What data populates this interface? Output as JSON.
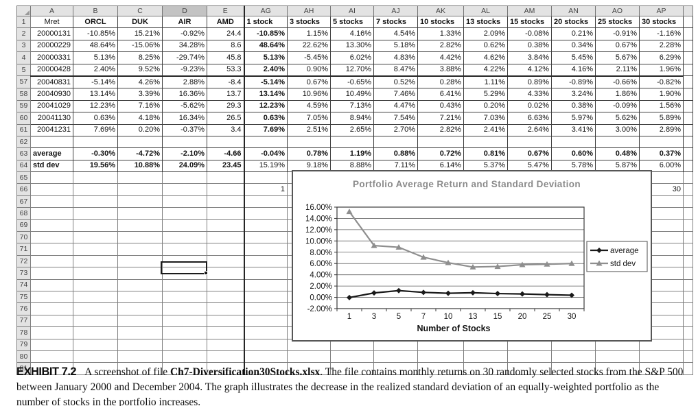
{
  "sheet": {
    "columns": [
      "A",
      "B",
      "C",
      "D",
      "E",
      "AG",
      "AH",
      "AI",
      "AJ",
      "AK",
      "AL",
      "AM",
      "AN",
      "AO",
      "AP"
    ],
    "selected_column": "D",
    "selected_row": "74",
    "selected_cell": "D74",
    "rows": [
      {
        "num": "1",
        "cells": [
          "Mret",
          "ORCL",
          "DUK",
          "AIR",
          "AMD",
          "1 stock",
          "3 stocks",
          "5 stocks",
          "7 stocks",
          "10 stocks",
          "13 stocks",
          "15 stocks",
          "20 stocks",
          "25 stocks",
          "30 stocks"
        ]
      },
      {
        "num": "2",
        "cells": [
          "20000131",
          "-10.85%",
          "15.21%",
          "-0.92%",
          "24.4",
          "-10.85%",
          "1.15%",
          "4.16%",
          "4.54%",
          "1.33%",
          "2.09%",
          "-0.08%",
          "0.21%",
          "-0.91%",
          "-1.16%"
        ]
      },
      {
        "num": "3",
        "cells": [
          "20000229",
          "48.64%",
          "-15.06%",
          "34.28%",
          "8.6",
          "48.64%",
          "22.62%",
          "13.30%",
          "5.18%",
          "2.82%",
          "0.62%",
          "0.38%",
          "0.34%",
          "0.67%",
          "2.28%"
        ]
      },
      {
        "num": "4",
        "cells": [
          "20000331",
          "5.13%",
          "8.25%",
          "-29.74%",
          "45.8",
          "5.13%",
          "-5.45%",
          "6.02%",
          "4.83%",
          "4.42%",
          "4.62%",
          "3.84%",
          "5.45%",
          "5.67%",
          "6.29%"
        ]
      },
      {
        "num": "5",
        "cells": [
          "20000428",
          "2.40%",
          "9.52%",
          "-9.23%",
          "53.3",
          "2.40%",
          "0.90%",
          "12.70%",
          "8.47%",
          "3.88%",
          "4.22%",
          "4.12%",
          "4.16%",
          "2.11%",
          "1.96%"
        ]
      },
      {
        "num": "57",
        "cells": [
          "20040831",
          "-5.14%",
          "4.26%",
          "2.88%",
          "-8.4",
          "-5.14%",
          "0.67%",
          "-0.65%",
          "0.52%",
          "0.28%",
          "1.11%",
          "0.89%",
          "-0.89%",
          "-0.66%",
          "-0.82%"
        ]
      },
      {
        "num": "58",
        "cells": [
          "20040930",
          "13.14%",
          "3.39%",
          "16.36%",
          "13.7",
          "13.14%",
          "10.96%",
          "10.49%",
          "7.46%",
          "6.41%",
          "5.29%",
          "4.33%",
          "3.24%",
          "1.86%",
          "1.90%"
        ]
      },
      {
        "num": "59",
        "cells": [
          "20041029",
          "12.23%",
          "7.16%",
          "-5.62%",
          "29.3",
          "12.23%",
          "4.59%",
          "7.13%",
          "4.47%",
          "0.43%",
          "0.20%",
          "0.02%",
          "0.38%",
          "-0.09%",
          "1.56%"
        ]
      },
      {
        "num": "60",
        "cells": [
          "20041130",
          "0.63%",
          "4.18%",
          "16.34%",
          "26.5",
          "0.63%",
          "7.05%",
          "8.94%",
          "7.54%",
          "7.21%",
          "7.03%",
          "6.63%",
          "5.97%",
          "5.62%",
          "5.89%"
        ]
      },
      {
        "num": "61",
        "cells": [
          "20041231",
          "7.69%",
          "0.20%",
          "-0.37%",
          "3.4",
          "7.69%",
          "2.51%",
          "2.65%",
          "2.70%",
          "2.82%",
          "2.41%",
          "2.64%",
          "3.41%",
          "3.00%",
          "2.89%"
        ]
      },
      {
        "num": "62"
      },
      {
        "num": "63",
        "cells": [
          "average",
          "-0.30%",
          "-4.72%",
          "-2.10%",
          "-4.66",
          "-0.04%",
          "0.78%",
          "1.19%",
          "0.88%",
          "0.72%",
          "0.81%",
          "0.67%",
          "0.60%",
          "0.48%",
          "0.37%"
        ]
      },
      {
        "num": "64",
        "cells": [
          "std dev",
          "19.56%",
          "10.88%",
          "24.09%",
          "23.45",
          "15.19%",
          "9.18%",
          "8.88%",
          "7.11%",
          "6.14%",
          "5.37%",
          "5.47%",
          "5.78%",
          "5.87%",
          "6.00%"
        ]
      },
      {
        "num": "65"
      },
      {
        "num": "66",
        "cells": [
          "",
          "",
          "",
          "",
          "",
          "1",
          "",
          "",
          "",
          "",
          "",
          "",
          "",
          "",
          "30"
        ]
      },
      {
        "num": "67"
      },
      {
        "num": "68"
      },
      {
        "num": "69"
      },
      {
        "num": "70"
      },
      {
        "num": "71"
      },
      {
        "num": "72"
      },
      {
        "num": "73"
      },
      {
        "num": "74"
      },
      {
        "num": "75"
      },
      {
        "num": "76"
      },
      {
        "num": "77"
      },
      {
        "num": "78"
      },
      {
        "num": "79"
      },
      {
        "num": "80"
      },
      {
        "num": "81"
      }
    ]
  },
  "chart_data": {
    "type": "line",
    "title": "Portfolio Average Return and Standard Deviation",
    "xlabel": "Number of Stocks",
    "ylabel": "",
    "categories": [
      "1",
      "3",
      "5",
      "7",
      "10",
      "13",
      "15",
      "20",
      "25",
      "30"
    ],
    "series": [
      {
        "name": "average",
        "marker": "diamond",
        "color": "#1a1a1a",
        "values": [
          -0.04,
          0.78,
          1.19,
          0.88,
          0.72,
          0.81,
          0.67,
          0.6,
          0.48,
          0.37
        ]
      },
      {
        "name": "std dev",
        "marker": "triangle",
        "color": "#8e8e8e",
        "values": [
          15.19,
          9.18,
          8.88,
          7.11,
          6.14,
          5.37,
          5.47,
          5.78,
          5.87,
          6.0
        ]
      }
    ],
    "ylim": [
      -2,
      16
    ],
    "ytick_step": 2,
    "ytick_suffix": "%",
    "grid": "horizontal",
    "legend_position": "right",
    "title_color": "#8a8a8a"
  },
  "caption": {
    "exhibit_label": "EXHIBIT 7.2",
    "text_before": "A screenshot of file ",
    "file_name": "Ch7-Diversification30Stocks.xlsx",
    "text_after": ". The file contains monthly returns on 30 randomly selected stocks from the S&P 500 between January 2000 and December 2004. The graph illustrates the decrease in the realized standard deviation of an equally-weighted portfolio as the number of stocks in the portfolio increases."
  }
}
